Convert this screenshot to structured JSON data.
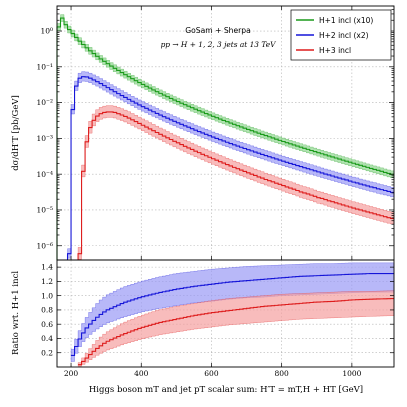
{
  "chart_data": [
    {
      "type": "line",
      "panel": "main",
      "annotation": [
        "GoSam + Sherpa",
        "pp → H + 1, 2, 3 jets at 13 TeV"
      ],
      "xlabel": "",
      "ylabel": "dσ/dH′T [pb/GeV]",
      "xlim": [
        160,
        1120
      ],
      "ylim": [
        4e-07,
        5
      ],
      "yscale": "log",
      "grid": true,
      "legend_position": "top-right",
      "x_ticks": [
        200,
        400,
        600,
        800,
        1000
      ],
      "x_tick_labels": [
        "",
        "",
        "",
        "",
        ""
      ],
      "y_ticks": [
        1e-06,
        1e-05,
        0.0001,
        0.001,
        0.01,
        0.1,
        1
      ],
      "y_tick_labels": [
        "10⁻⁶",
        "10⁻⁵",
        "10⁻⁴",
        "10⁻³",
        "10⁻²",
        "10⁻¹",
        "10⁰"
      ],
      "series": [
        {
          "name": "H+1 incl (x10)",
          "color": "#1a9a1a",
          "band_color": "#8fd68f",
          "x_start": 160,
          "bin_width": 10,
          "values": [
            1.3,
            2.3,
            1.5,
            1.1,
            0.85,
            0.66,
            0.52,
            0.42,
            0.34,
            0.28,
            0.234,
            0.196,
            0.166,
            0.142,
            0.122,
            0.105,
            0.091,
            0.079,
            0.0689,
            0.0603,
            0.0529,
            0.0465,
            0.041,
            0.0362,
            0.0321,
            0.0285,
            0.0254,
            0.0226,
            0.0202,
            0.0181,
            0.0162,
            0.0146,
            0.0131,
            0.0118,
            0.0107,
            0.00965,
            0.00874,
            0.00792,
            0.00719,
            0.00654,
            0.00595,
            0.00543,
            0.00495,
            0.00452,
            0.00414,
            0.00379,
            0.00347,
            0.00318,
            0.00292,
            0.00268,
            0.00247,
            0.00227,
            0.00209,
            0.00193,
            0.00178,
            0.00164,
            0.00151,
            0.0014,
            0.00129,
            0.0012,
            0.00111,
            0.00103,
            0.00095,
            0.00088,
            0.000818,
            0.00076,
            0.000706,
            0.000656,
            0.00061,
            0.000568,
            0.000529,
            0.000493,
            0.000459,
            0.000428,
            0.000399,
            0.000372,
            0.000347,
            0.000324,
            0.000303,
            0.000283,
            0.000264,
            0.000247,
            0.000231,
            0.000216,
            0.000202,
            0.000189,
            0.000177,
            0.000166,
            0.000155,
            0.000145,
            0.000136,
            0.000128,
            0.00012,
            0.000112,
            0.000105,
            9.9e-05
          ],
          "band_rel_low": 0.8,
          "band_rel_high": 1.25
        },
        {
          "name": "H+2 incl (x2)",
          "color": "#1515d8",
          "band_color": "#9a9af5",
          "x_start": 190,
          "bin_width": 10,
          "values": [
            6e-07,
            0.0064,
            0.029,
            0.048,
            0.053,
            0.052,
            0.048,
            0.043,
            0.0385,
            0.034,
            0.0298,
            0.0262,
            0.023,
            0.0202,
            0.0178,
            0.0157,
            0.0139,
            0.0123,
            0.0109,
            0.0097,
            0.0086,
            0.0077,
            0.0069,
            0.00618,
            0.00555,
            0.00499,
            0.00449,
            0.00405,
            0.00366,
            0.00331,
            0.003,
            0.00272,
            0.00247,
            0.00225,
            0.00205,
            0.00187,
            0.0017,
            0.00155,
            0.00142,
            0.0013,
            0.00119,
            0.00109,
            0.001,
            0.00092,
            0.000847,
            0.00078,
            0.000718,
            0.000662,
            0.000611,
            0.000565,
            0.000522,
            0.000483,
            0.000448,
            0.000415,
            0.000385,
            0.000357,
            0.000331,
            0.000308,
            0.000286,
            0.000266,
            0.000248,
            0.000231,
            0.000215,
            0.0002,
            0.000187,
            0.000174,
            0.000163,
            0.000152,
            0.000142,
            0.000133,
            0.000124,
            0.000116,
            0.000108,
            0.000101,
            9.5e-05,
            8.9e-05,
            8.3e-05,
            7.8e-05,
            7.3e-05,
            6.9e-05,
            6.4e-05,
            6e-05,
            5.7e-05,
            5.3e-05,
            5e-05,
            4.7e-05,
            4.4e-05,
            4.2e-05,
            3.9e-05,
            3.7e-05,
            3.5e-05,
            3.3e-05,
            3.1e-05
          ],
          "band_rel_low": 0.75,
          "band_rel_high": 1.38
        },
        {
          "name": "H+3 incl",
          "color": "#dd1c1c",
          "band_color": "#f5a0a0",
          "x_start": 220,
          "bin_width": 10,
          "values": [
            6e-07,
            0.00012,
            0.0008,
            0.002,
            0.0032,
            0.0042,
            0.0049,
            0.0053,
            0.0055,
            0.0055,
            0.0053,
            0.0049,
            0.0045,
            0.0041,
            0.0037,
            0.0033,
            0.00295,
            0.00262,
            0.00233,
            0.00207,
            0.00184,
            0.00164,
            0.00146,
            0.0013,
            0.00116,
            0.00104,
            0.00093,
            0.00083,
            0.00075,
            0.00067,
            0.0006,
            0.00054,
            0.00049,
            0.00044,
            0.0004,
            0.00036,
            0.000327,
            0.000297,
            0.00027,
            0.000246,
            0.000224,
            0.000204,
            0.000186,
            0.00017,
            0.000155,
            0.000142,
            0.00013,
            0.000119,
            0.000109,
            0.0001,
            9.2e-05,
            8.4e-05,
            7.8e-05,
            7.1e-05,
            6.6e-05,
            6.1e-05,
            5.6e-05,
            5.2e-05,
            4.8e-05,
            4.4e-05,
            4.1e-05,
            3.8e-05,
            3.5e-05,
            3.2e-05,
            3e-05,
            2.8e-05,
            2.6e-05,
            2.4e-05,
            2.2e-05,
            2.1e-05,
            1.95e-05,
            1.8e-05,
            1.7e-05,
            1.58e-05,
            1.48e-05,
            1.38e-05,
            1.29e-05,
            1.21e-05,
            1.13e-05,
            1.06e-05,
            1e-05,
            9.4e-06,
            8.8e-06,
            8.3e-06,
            7.8e-06,
            7.3e-06,
            6.9e-06,
            6.5e-06,
            6.1e-06,
            5.8e-06
          ],
          "band_rel_low": 0.7,
          "band_rel_high": 1.5
        }
      ]
    },
    {
      "type": "line",
      "panel": "ratio",
      "xlabel": "Higgs boson mT and jet pT scalar sum:  H′T = mT,H + HT [GeV]",
      "ylabel": "Ratio wrt. H+1 incl",
      "xlim": [
        160,
        1120
      ],
      "ylim": [
        0,
        1.5
      ],
      "grid": true,
      "x_ticks": [
        200,
        400,
        600,
        800,
        1000
      ],
      "x_tick_labels": [
        "200",
        "400",
        "600",
        "800",
        "1000"
      ],
      "y_ticks": [
        0.2,
        0.4,
        0.6,
        0.8,
        1.0,
        1.2,
        1.4
      ],
      "y_tick_labels": [
        "0.2",
        "0.4",
        "0.6",
        "0.8",
        "1.0",
        "1.2",
        "1.4"
      ],
      "series": [
        {
          "name": "H+2 incl (x2)",
          "color": "#1515d8",
          "band_color": "#9a9af5",
          "points": [
            [
              200,
              0.1
            ],
            [
              220,
              0.35
            ],
            [
              240,
              0.52
            ],
            [
              260,
              0.63
            ],
            [
              280,
              0.72
            ],
            [
              300,
              0.79
            ],
            [
              350,
              0.9
            ],
            [
              400,
              0.98
            ],
            [
              450,
              1.04
            ],
            [
              500,
              1.09
            ],
            [
              550,
              1.13
            ],
            [
              600,
              1.16
            ],
            [
              650,
              1.19
            ],
            [
              700,
              1.21
            ],
            [
              750,
              1.23
            ],
            [
              800,
              1.25
            ],
            [
              850,
              1.27
            ],
            [
              900,
              1.28
            ],
            [
              950,
              1.29
            ],
            [
              1000,
              1.3
            ],
            [
              1050,
              1.31
            ],
            [
              1120,
              1.31
            ]
          ],
          "band_low": [
            [
              200,
              0.02
            ],
            [
              220,
              0.25
            ],
            [
              240,
              0.39
            ],
            [
              260,
              0.48
            ],
            [
              280,
              0.55
            ],
            [
              300,
              0.61
            ],
            [
              350,
              0.7
            ],
            [
              400,
              0.77
            ],
            [
              450,
              0.82
            ],
            [
              500,
              0.86
            ],
            [
              550,
              0.9
            ],
            [
              600,
              0.92
            ],
            [
              650,
              0.95
            ],
            [
              700,
              0.97
            ],
            [
              750,
              0.98
            ],
            [
              800,
              1.0
            ],
            [
              850,
              1.01
            ],
            [
              900,
              1.02
            ],
            [
              950,
              1.03
            ],
            [
              1000,
              1.04
            ],
            [
              1050,
              1.05
            ],
            [
              1120,
              1.05
            ]
          ],
          "band_high": [
            [
              200,
              0.18
            ],
            [
              220,
              0.46
            ],
            [
              240,
              0.66
            ],
            [
              260,
              0.8
            ],
            [
              280,
              0.92
            ],
            [
              300,
              1.0
            ],
            [
              350,
              1.12
            ],
            [
              400,
              1.2
            ],
            [
              450,
              1.26
            ],
            [
              500,
              1.31
            ],
            [
              550,
              1.34
            ],
            [
              600,
              1.37
            ],
            [
              650,
              1.39
            ],
            [
              700,
              1.41
            ],
            [
              750,
              1.42
            ],
            [
              800,
              1.43
            ],
            [
              850,
              1.44
            ],
            [
              900,
              1.45
            ],
            [
              950,
              1.45
            ],
            [
              1000,
              1.46
            ],
            [
              1050,
              1.46
            ],
            [
              1120,
              1.46
            ]
          ]
        },
        {
          "name": "H+3 incl",
          "color": "#dd1c1c",
          "band_color": "#f5a0a0",
          "points": [
            [
              220,
              0.01
            ],
            [
              240,
              0.1
            ],
            [
              260,
              0.2
            ],
            [
              280,
              0.28
            ],
            [
              300,
              0.35
            ],
            [
              350,
              0.46
            ],
            [
              400,
              0.55
            ],
            [
              450,
              0.62
            ],
            [
              500,
              0.67
            ],
            [
              550,
              0.72
            ],
            [
              600,
              0.76
            ],
            [
              650,
              0.79
            ],
            [
              700,
              0.82
            ],
            [
              750,
              0.85
            ],
            [
              800,
              0.87
            ],
            [
              850,
              0.89
            ],
            [
              900,
              0.91
            ],
            [
              950,
              0.92
            ],
            [
              1000,
              0.94
            ],
            [
              1050,
              0.95
            ],
            [
              1120,
              0.96
            ]
          ],
          "band_low": [
            [
              220,
              0.0
            ],
            [
              240,
              0.05
            ],
            [
              260,
              0.12
            ],
            [
              280,
              0.18
            ],
            [
              300,
              0.23
            ],
            [
              350,
              0.32
            ],
            [
              400,
              0.39
            ],
            [
              450,
              0.45
            ],
            [
              500,
              0.49
            ],
            [
              550,
              0.53
            ],
            [
              600,
              0.56
            ],
            [
              650,
              0.59
            ],
            [
              700,
              0.61
            ],
            [
              750,
              0.63
            ],
            [
              800,
              0.65
            ],
            [
              850,
              0.67
            ],
            [
              900,
              0.68
            ],
            [
              950,
              0.69
            ],
            [
              1000,
              0.7
            ],
            [
              1050,
              0.71
            ],
            [
              1120,
              0.72
            ]
          ],
          "band_high": [
            [
              220,
              0.03
            ],
            [
              240,
              0.16
            ],
            [
              260,
              0.29
            ],
            [
              280,
              0.4
            ],
            [
              300,
              0.48
            ],
            [
              350,
              0.62
            ],
            [
              400,
              0.72
            ],
            [
              450,
              0.8
            ],
            [
              500,
              0.85
            ],
            [
              550,
              0.89
            ],
            [
              600,
              0.93
            ],
            [
              650,
              0.96
            ],
            [
              700,
              0.98
            ],
            [
              750,
              1.0
            ],
            [
              800,
              1.02
            ],
            [
              850,
              1.03
            ],
            [
              900,
              1.04
            ],
            [
              950,
              1.05
            ],
            [
              1000,
              1.06
            ],
            [
              1050,
              1.06
            ],
            [
              1120,
              1.07
            ]
          ]
        }
      ]
    }
  ]
}
